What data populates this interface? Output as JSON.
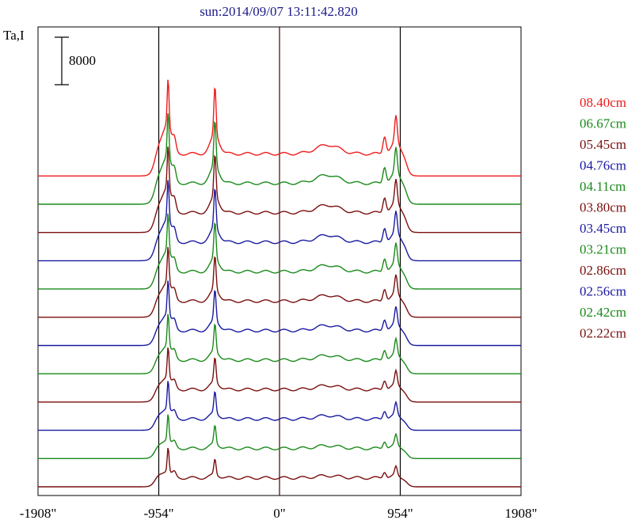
{
  "chart_data": {
    "type": "line",
    "title": "sun:2014/09/07 13:11:42.820",
    "ylabel": "Ta,I",
    "scale_bar_label": "8000",
    "x_ticks": [
      {
        "value": -1908,
        "label": "-1908\""
      },
      {
        "value": -954,
        "label": "-954\""
      },
      {
        "value": 0,
        "label": "0\""
      },
      {
        "value": 954,
        "label": "954\""
      },
      {
        "value": 1908,
        "label": "1908\""
      }
    ],
    "xlim": [
      -1908,
      1908
    ],
    "vertical_lines": [
      -954,
      0,
      954
    ],
    "legend_placement": "right",
    "grid": false,
    "series": [
      {
        "name": "08.40cm",
        "color": "#ee1c1c",
        "offset": 210
      },
      {
        "name": "06.67cm",
        "color": "#1a8a1a",
        "offset": 180
      },
      {
        "name": "05.45cm",
        "color": "#7a0f0f",
        "offset": 165
      },
      {
        "name": "04.76cm",
        "color": "#1a1aa0",
        "offset": 150
      },
      {
        "name": "04.11cm",
        "color": "#1a8a1a",
        "offset": 135
      },
      {
        "name": "03.80cm",
        "color": "#7a0f0f",
        "offset": 120
      },
      {
        "name": "03.45cm",
        "color": "#1a1aa0",
        "offset": 105
      },
      {
        "name": "03.21cm",
        "color": "#1a8a1a",
        "offset": 90
      },
      {
        "name": "02.86cm",
        "color": "#7a0f0f",
        "offset": 75
      },
      {
        "name": "02.56cm",
        "color": "#1a1aa0",
        "offset": 60
      },
      {
        "name": "02.42cm",
        "color": "#1a8a1a",
        "offset": 45
      },
      {
        "name": "02.22cm",
        "color": "#7a0f0f",
        "offset": 30
      }
    ]
  }
}
